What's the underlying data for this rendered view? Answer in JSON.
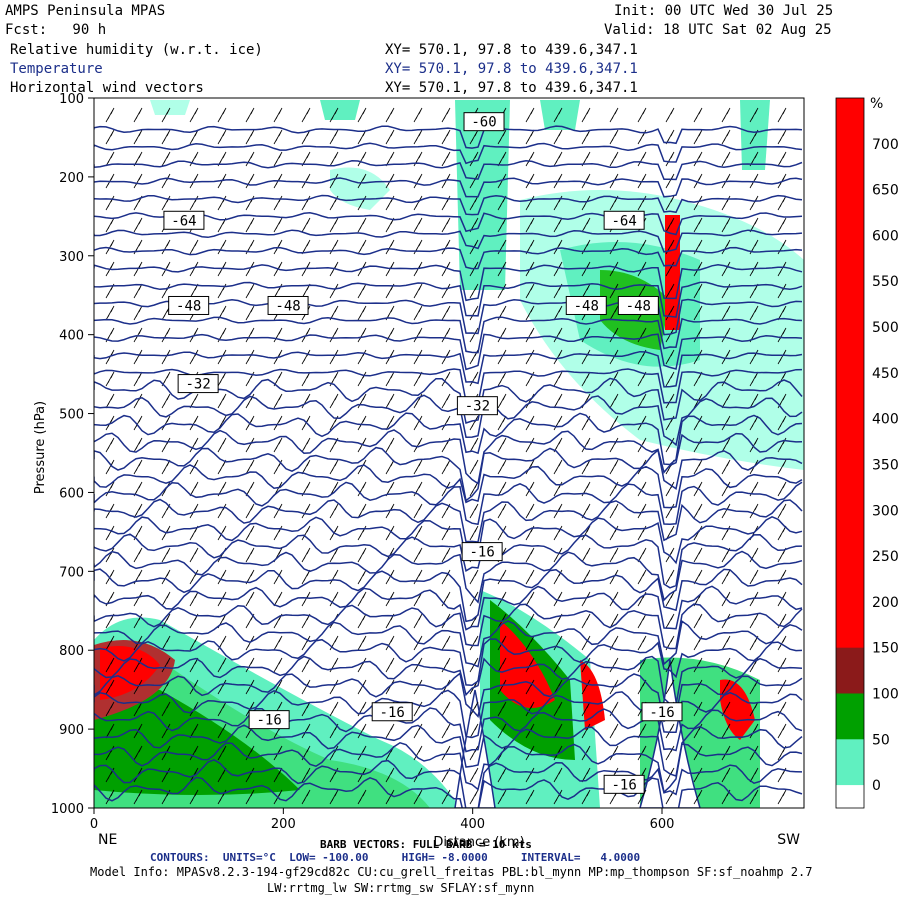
{
  "header": {
    "model_title": "AMPS Peninsula MPAS",
    "init": "Init: 00 UTC Wed 30 Jul 25",
    "fcst": "Fcst:   90 h",
    "valid": "Valid: 18 UTC Sat 02 Aug 25",
    "field1": "Relative humidity (w.r.t. ice)",
    "field1_xy": "XY= 570.1, 97.8 to 439.6,347.1",
    "field2": "Temperature",
    "field2_xy": "XY= 570.1, 97.8 to 439.6,347.1",
    "field3": "Horizontal wind vectors",
    "field3_xy": "XY= 570.1, 97.8 to 439.6,347.1"
  },
  "colors": {
    "contour": "#1c2f8a",
    "barb": "#000000",
    "rh_scale": [
      "#ffffff",
      "#e0fff8",
      "#b0ffe8",
      "#60f0c0",
      "#40e080",
      "#20c020",
      "#00a000",
      "#006600",
      "#b03030",
      "#ff0000"
    ]
  },
  "chart_data": {
    "type": "cross-section",
    "ylabel": "Pressure (hPa)",
    "xlabel": "Distance (km)",
    "x_ticks": [
      "0",
      "200",
      "400",
      "600"
    ],
    "y_ticks": [
      "100",
      "200",
      "300",
      "400",
      "500",
      "600",
      "700",
      "800",
      "900",
      "1000"
    ],
    "xlim": [
      0,
      750
    ],
    "ylim": [
      1000,
      100
    ],
    "left_end": "NE",
    "right_end": "SW",
    "colorbar_unit": "%",
    "colorbar_ticks": [
      "700",
      "650",
      "600",
      "550",
      "500",
      "450",
      "400",
      "350",
      "300",
      "250",
      "200",
      "150",
      "100",
      "50",
      "0"
    ],
    "temperature_contour_labels": [
      {
        "text": "-64",
        "x": 95,
        "p": 255
      },
      {
        "text": "-64",
        "x": 560,
        "p": 255
      },
      {
        "text": "-60",
        "x": 412,
        "p": 130
      },
      {
        "text": "-48",
        "x": 100,
        "p": 363
      },
      {
        "text": "-48",
        "x": 205,
        "p": 363
      },
      {
        "text": "-48",
        "x": 520,
        "p": 363
      },
      {
        "text": "-48",
        "x": 575,
        "p": 363
      },
      {
        "text": "-32",
        "x": 110,
        "p": 462
      },
      {
        "text": "-32",
        "x": 405,
        "p": 490
      },
      {
        "text": "-16",
        "x": 410,
        "p": 675
      },
      {
        "text": "-16",
        "x": 185,
        "p": 888
      },
      {
        "text": "-16",
        "x": 315,
        "p": 878
      },
      {
        "text": "-16",
        "x": 600,
        "p": 878
      },
      {
        "text": "-16",
        "x": 560,
        "p": 970
      }
    ]
  },
  "footer": {
    "barb_note": "BARB VECTORS: FULL BARB = 10 kts",
    "contours_note": "CONTOURS:  UNITS=°C  LOW= -100.00     HIGH= -8.0000     INTERVAL=   4.0000",
    "model_info": "Model Info: MPASv8.2.3-194-gf29cd82c CU:cu_grell_freitas PBL:bl_mynn MP:mp_thompson SF:sf_noahmp 2.7",
    "model_info2": "LW:rrtmg_lw SW:rrtmg_sw SFLAY:sf_mynn"
  }
}
